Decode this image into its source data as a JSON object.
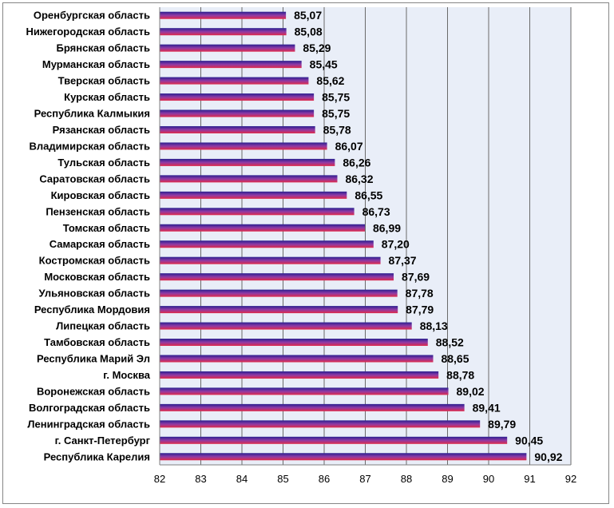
{
  "chart_data": {
    "type": "bar",
    "orientation": "horizontal",
    "title": "",
    "xlabel": "",
    "ylabel": "",
    "xlim": [
      82,
      92
    ],
    "ticks": [
      "82",
      "83",
      "84",
      "85",
      "86",
      "87",
      "88",
      "89",
      "90",
      "91",
      "92"
    ],
    "grid": "vertical",
    "legend": "none",
    "categories": [
      "Оренбургская область",
      "Нижегородская область",
      "Брянская область",
      "Мурманская область",
      "Тверская область",
      "Курская область",
      "Республика Калмыкия",
      "Рязанская область",
      "Владимирская область",
      "Тульская область",
      "Саратовская область",
      "Кировская область",
      "Пензенская область",
      "Томская область",
      "Самарская область",
      "Костромская область",
      "Московская область",
      "Ульяновская область",
      "Республика Мордовия",
      "Липецкая область",
      "Тамбовская область",
      "Республика Марий Эл",
      "г. Москва",
      "Воронежская область",
      "Волгоградская область",
      "Ленинградская область",
      "г. Санкт-Петербург",
      "Республика Карелия"
    ],
    "values": [
      85.07,
      85.08,
      85.29,
      85.45,
      85.62,
      85.75,
      85.75,
      85.78,
      86.07,
      86.26,
      86.32,
      86.55,
      86.73,
      86.99,
      87.2,
      87.37,
      87.69,
      87.78,
      87.79,
      88.13,
      88.52,
      88.65,
      88.78,
      89.02,
      89.41,
      89.79,
      90.45,
      90.92
    ],
    "value_labels": [
      "85,07",
      "85,08",
      "85,29",
      "85,45",
      "85,62",
      "85,75",
      "85,75",
      "85,78",
      "86,07",
      "86,26",
      "86,32",
      "86,55",
      "86,73",
      "86,99",
      "87,20",
      "87,37",
      "87,69",
      "87,78",
      "87,79",
      "88,13",
      "88,52",
      "88,65",
      "88,78",
      "89,02",
      "89,41",
      "89,79",
      "90,45",
      "90,92"
    ],
    "colors": {
      "bar_top": "#2a1f8f",
      "bar_mid": "#8e3aa6",
      "bar_bottom": "#e02a4a",
      "plot_background": "#e9eef8",
      "gridline": "#6a6a6a"
    }
  }
}
